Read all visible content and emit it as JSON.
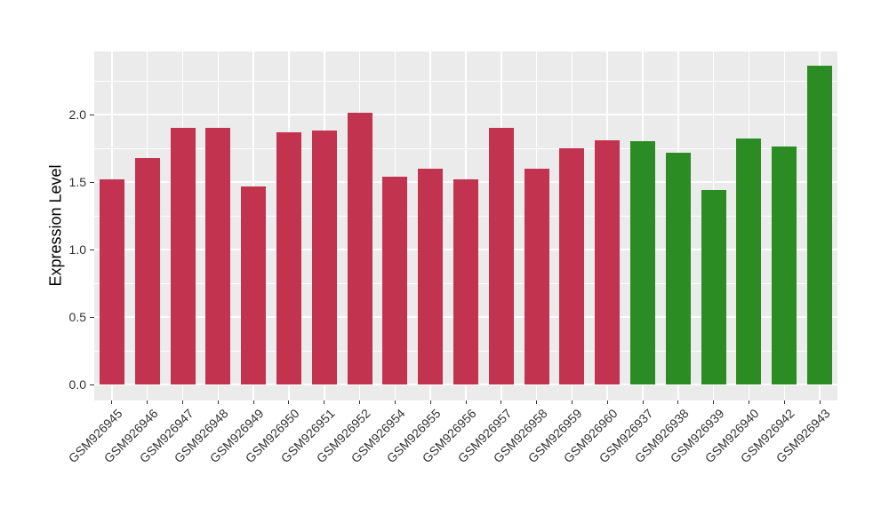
{
  "figure": {
    "background": "#FFFFFF"
  },
  "chart_data": {
    "type": "bar",
    "title": "",
    "xlabel": "",
    "ylabel": "Expression Level",
    "categories": [
      "GSM926945",
      "GSM926946",
      "GSM926947",
      "GSM926948",
      "GSM926949",
      "GSM926950",
      "GSM926951",
      "GSM926952",
      "GSM926954",
      "GSM926955",
      "GSM926956",
      "GSM926957",
      "GSM926958",
      "GSM926959",
      "GSM926960",
      "GSM926937",
      "GSM926938",
      "GSM926939",
      "GSM926940",
      "GSM926942",
      "GSM926943"
    ],
    "values": [
      1.52,
      1.68,
      1.9,
      1.9,
      1.47,
      1.87,
      1.88,
      2.01,
      1.54,
      1.6,
      1.52,
      1.9,
      1.6,
      1.75,
      1.81,
      1.8,
      1.72,
      1.44,
      1.82,
      1.76,
      2.36
    ],
    "bar_groups": [
      "red",
      "red",
      "red",
      "red",
      "red",
      "red",
      "red",
      "red",
      "red",
      "red",
      "red",
      "red",
      "red",
      "red",
      "red",
      "green",
      "green",
      "green",
      "green",
      "green",
      "green"
    ],
    "group_colors": {
      "red": "#C23350",
      "green": "#2A8C22"
    },
    "ytick_labels": [
      "0.0",
      "0.5",
      "1.0",
      "1.5",
      "2.0"
    ],
    "ytick_values": [
      0.0,
      0.5,
      1.0,
      1.5,
      2.0
    ],
    "minor_ytick_values": [
      0.25,
      0.75,
      1.25,
      1.75,
      2.25
    ],
    "ylim": [
      -0.12,
      2.47
    ],
    "bar_width_ratio": 0.7,
    "grid": true,
    "legend": false,
    "panel_background": "#EBEBEB",
    "grid_color": "#FFFFFF",
    "axis_text_color": "#333333",
    "tick_mark_color": "#333333"
  }
}
